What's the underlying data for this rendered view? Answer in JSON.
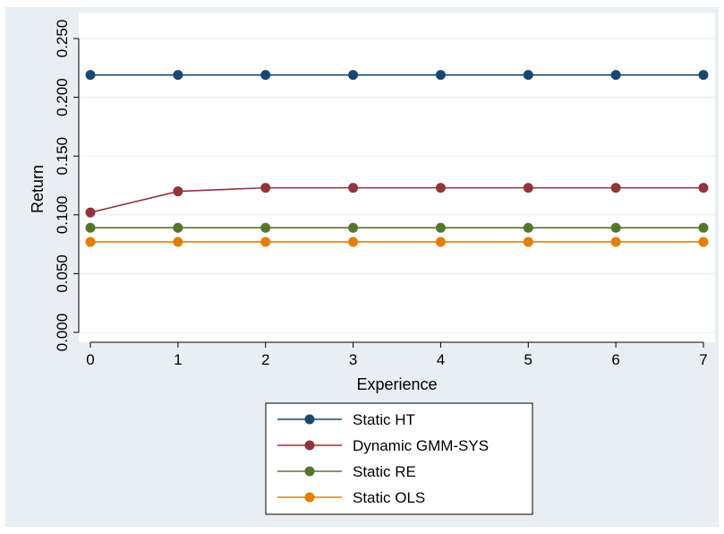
{
  "colors": {
    "frame_bg": "#e8eef2",
    "plot_bg": "#ffffff",
    "grid": "#e4eaee",
    "axis": "#000000"
  },
  "chart_data": {
    "type": "line",
    "xlabel": "Experience",
    "ylabel": "Return",
    "x": [
      0,
      1,
      2,
      3,
      4,
      5,
      6,
      7
    ],
    "xlim": [
      0,
      7
    ],
    "ylim": [
      0,
      0.25
    ],
    "xticks": [
      "0",
      "1",
      "2",
      "3",
      "4",
      "5",
      "6",
      "7"
    ],
    "yticks": [
      "0.000",
      "0.050",
      "0.100",
      "0.150",
      "0.200",
      "0.250"
    ],
    "ytick_values": [
      0,
      0.05,
      0.1,
      0.15,
      0.2,
      0.25
    ],
    "grid": true,
    "legend_position": "bottom",
    "series": [
      {
        "name": "Static HT",
        "color": "#1a476f",
        "values": [
          0.219,
          0.219,
          0.219,
          0.219,
          0.219,
          0.219,
          0.219,
          0.219
        ]
      },
      {
        "name": "Dynamic GMM-SYS",
        "color": "#90353b",
        "values": [
          0.102,
          0.12,
          0.123,
          0.123,
          0.123,
          0.123,
          0.123,
          0.123
        ]
      },
      {
        "name": "Static RE",
        "color": "#55752f",
        "values": [
          0.089,
          0.089,
          0.089,
          0.089,
          0.089,
          0.089,
          0.089,
          0.089
        ]
      },
      {
        "name": "Static OLS",
        "color": "#e37e00",
        "values": [
          0.077,
          0.077,
          0.077,
          0.077,
          0.077,
          0.077,
          0.077,
          0.077
        ]
      }
    ]
  }
}
